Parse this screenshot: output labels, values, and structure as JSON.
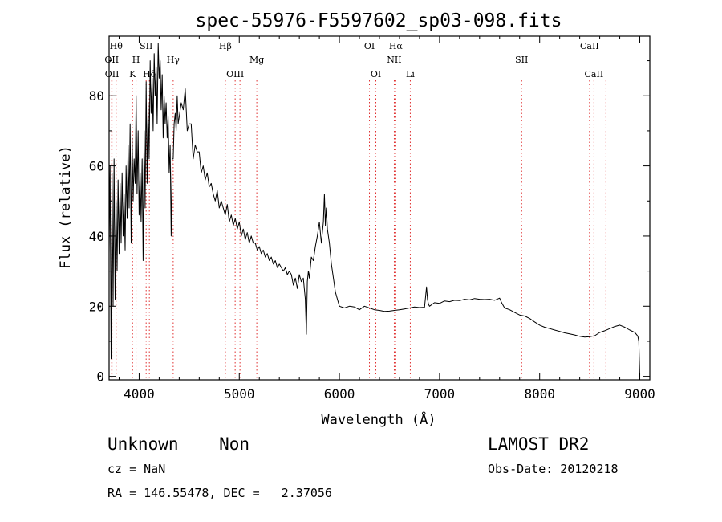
{
  "chart_data": {
    "type": "line",
    "title": "spec-55976-F5597602_sp03-098.fits",
    "xlabel": "Wavelength (Å)",
    "ylabel": "Flux (relative)",
    "xlim": [
      3700,
      9100
    ],
    "ylim": [
      -1,
      97
    ],
    "xticks": [
      4000,
      5000,
      6000,
      7000,
      8000,
      9000
    ],
    "yticks": [
      0,
      20,
      40,
      60,
      80
    ],
    "grid": false,
    "legend": "none",
    "line_color": "#000000",
    "marker_color": "#e03030",
    "series": [
      {
        "x": [
          3700,
          3710,
          3720,
          3730,
          3740,
          3750,
          3760,
          3770,
          3780,
          3790,
          3800,
          3810,
          3820,
          3830,
          3840,
          3850,
          3860,
          3870,
          3880,
          3890,
          3900,
          3910,
          3920,
          3930,
          3940,
          3950,
          3960,
          3970,
          3980,
          3990,
          4000,
          4010,
          4020,
          4030,
          4040,
          4050,
          4060,
          4070,
          4080,
          4090,
          4100,
          4110,
          4120,
          4130,
          4140,
          4150,
          4160,
          4170,
          4180,
          4190,
          4200,
          4210,
          4220,
          4230,
          4240,
          4250,
          4260,
          4270,
          4280,
          4290,
          4300,
          4310,
          4320,
          4330,
          4340,
          4350,
          4360,
          4370,
          4380,
          4390,
          4400,
          4420,
          4440,
          4460,
          4480,
          4500,
          4520,
          4540,
          4560,
          4580,
          4600,
          4620,
          4640,
          4660,
          4680,
          4700,
          4720,
          4740,
          4760,
          4780,
          4800,
          4820,
          4840,
          4860,
          4880,
          4900,
          4920,
          4940,
          4960,
          4980,
          5000,
          5020,
          5040,
          5060,
          5080,
          5100,
          5120,
          5140,
          5160,
          5180,
          5200,
          5220,
          5240,
          5260,
          5280,
          5300,
          5320,
          5340,
          5360,
          5380,
          5400,
          5420,
          5440,
          5460,
          5480,
          5500,
          5520,
          5540,
          5560,
          5580,
          5600,
          5620,
          5640,
          5660,
          5670,
          5680,
          5690,
          5700,
          5720,
          5740,
          5760,
          5780,
          5800,
          5820,
          5840,
          5850,
          5860,
          5870,
          5880,
          5900,
          5920,
          5940,
          5960,
          5980,
          6000,
          6050,
          6100,
          6150,
          6200,
          6250,
          6300,
          6350,
          6400,
          6450,
          6500,
          6550,
          6600,
          6650,
          6700,
          6750,
          6800,
          6850,
          6870,
          6880,
          6890,
          6900,
          6950,
          7000,
          7050,
          7100,
          7150,
          7200,
          7250,
          7300,
          7350,
          7400,
          7450,
          7500,
          7550,
          7600,
          7620,
          7650,
          7700,
          7750,
          7800,
          7850,
          7900,
          7950,
          8000,
          8050,
          8100,
          8150,
          8200,
          8250,
          8300,
          8350,
          8400,
          8450,
          8500,
          8550,
          8600,
          8650,
          8700,
          8750,
          8800,
          8850,
          8900,
          8950,
          8980,
          8990,
          9000
        ],
        "y": [
          35,
          60,
          5,
          58,
          20,
          62,
          22,
          50,
          30,
          56,
          35,
          55,
          38,
          58,
          40,
          52,
          36,
          60,
          45,
          66,
          48,
          72,
          38,
          68,
          50,
          62,
          55,
          80,
          52,
          70,
          46,
          58,
          44,
          62,
          33,
          70,
          48,
          84,
          55,
          78,
          62,
          90,
          75,
          85,
          70,
          92,
          80,
          88,
          72,
          95,
          85,
          90,
          76,
          86,
          68,
          80,
          72,
          78,
          68,
          74,
          58,
          66,
          40,
          62,
          62,
          72,
          75,
          70,
          80,
          72,
          74,
          78,
          76,
          82,
          70,
          72,
          72,
          62,
          66,
          64,
          64,
          58,
          60,
          56,
          58,
          54,
          55,
          52,
          50,
          53,
          48,
          50,
          48,
          46,
          49,
          44,
          46,
          43,
          45,
          42,
          44,
          40,
          42,
          39,
          41,
          38,
          40,
          38,
          38,
          36,
          37,
          35,
          36,
          34,
          35,
          33,
          34,
          32,
          33,
          31,
          32,
          31,
          30,
          31,
          29,
          30,
          29,
          26,
          28,
          25,
          29,
          27,
          28,
          22,
          12,
          27,
          30,
          28,
          34,
          33,
          37,
          40,
          44,
          38,
          44,
          52,
          43,
          48,
          42,
          38,
          32,
          28,
          24,
          22,
          20,
          19.5,
          20,
          19.8,
          19,
          20,
          19.5,
          19,
          18.8,
          18.5,
          18.6,
          18.8,
          19,
          19.2,
          19.5,
          19.8,
          19.6,
          19.7,
          25.5,
          22,
          20.5,
          20,
          21,
          20.8,
          21.5,
          21.3,
          21.7,
          21.6,
          22,
          21.8,
          22.2,
          22,
          21.9,
          22,
          21.7,
          22.3,
          21,
          19.5,
          19,
          18.2,
          17.5,
          17.2,
          16.5,
          15.5,
          14.6,
          14,
          13.6,
          13.2,
          12.8,
          12.4,
          12.1,
          11.8,
          11.4,
          11.2,
          11.3,
          11.6,
          12.5,
          13,
          13.6,
          14.2,
          14.6,
          14,
          13.2,
          12.5,
          11.5,
          10,
          0
        ]
      }
    ],
    "lines": [
      {
        "x": 3726,
        "label": "OII",
        "row": 1
      },
      {
        "x": 3729,
        "label": "OII",
        "row": 2
      },
      {
        "x": 3770,
        "label": "Hθ",
        "row": 0
      },
      {
        "x": 3934,
        "label": "K",
        "row": 2
      },
      {
        "x": 3969,
        "label": "H",
        "row": 1
      },
      {
        "x": 4070,
        "label": "SII",
        "row": 0
      },
      {
        "x": 4102,
        "label": "Hδ",
        "row": 2
      },
      {
        "x": 4340,
        "label": "Hγ",
        "row": 1
      },
      {
        "x": 4861,
        "label": "Hβ",
        "row": 0
      },
      {
        "x": 4959,
        "label": "OIII",
        "row": 2
      },
      {
        "x": 5007,
        "label": "",
        "row": 2
      },
      {
        "x": 5175,
        "label": "Mg",
        "row": 1
      },
      {
        "x": 6300,
        "label": "OI",
        "row": 0
      },
      {
        "x": 6364,
        "label": "OI",
        "row": 2
      },
      {
        "x": 6548,
        "label": "NII",
        "row": 1
      },
      {
        "x": 6563,
        "label": "Hα",
        "row": 0
      },
      {
        "x": 6708,
        "label": "Li",
        "row": 2
      },
      {
        "x": 7820,
        "label": "SII",
        "row": 1
      },
      {
        "x": 8498,
        "label": "CaII",
        "row": 0
      },
      {
        "x": 8542,
        "label": "CaII",
        "row": 2
      },
      {
        "x": 8662,
        "label": "",
        "row": 2
      }
    ]
  },
  "info": {
    "classification": "Unknown    Non",
    "survey": "LAMOST DR2",
    "redshift": "cz = NaN",
    "obs_date": "Obs-Date: 20120218",
    "coords": "RA = 146.55478, DEC =   2.37056"
  }
}
